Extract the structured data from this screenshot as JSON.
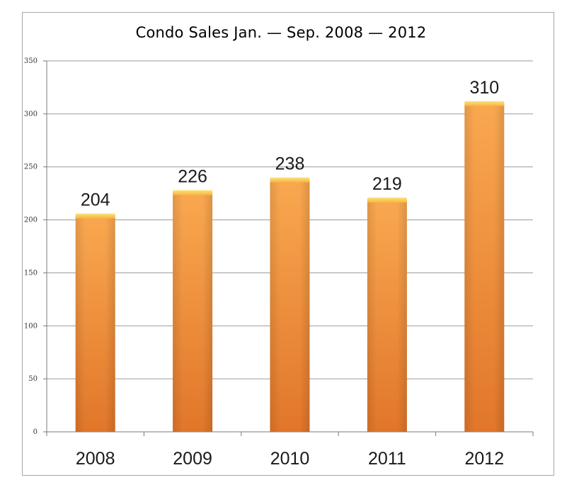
{
  "chart_data": {
    "type": "bar",
    "title": "Condo Sales Jan. — Sep. 2008 — 2012",
    "xlabel": "",
    "ylabel": "",
    "categories": [
      "2008",
      "2009",
      "2010",
      "2011",
      "2012"
    ],
    "values": [
      204,
      226,
      238,
      219,
      310
    ],
    "data_labels": [
      "204",
      "226",
      "238",
      "219",
      "310"
    ],
    "ylim": [
      0,
      350
    ],
    "yticks": [
      "0",
      "50",
      "100",
      "150",
      "200",
      "250",
      "300",
      "350"
    ],
    "grid": "horizontal",
    "legend": "none",
    "colors": {
      "bar_light": "#f8a24a",
      "bar_dark": "#e2782a",
      "bar_cap": "#fcd24c",
      "gridline": "#9a9a9a"
    }
  }
}
